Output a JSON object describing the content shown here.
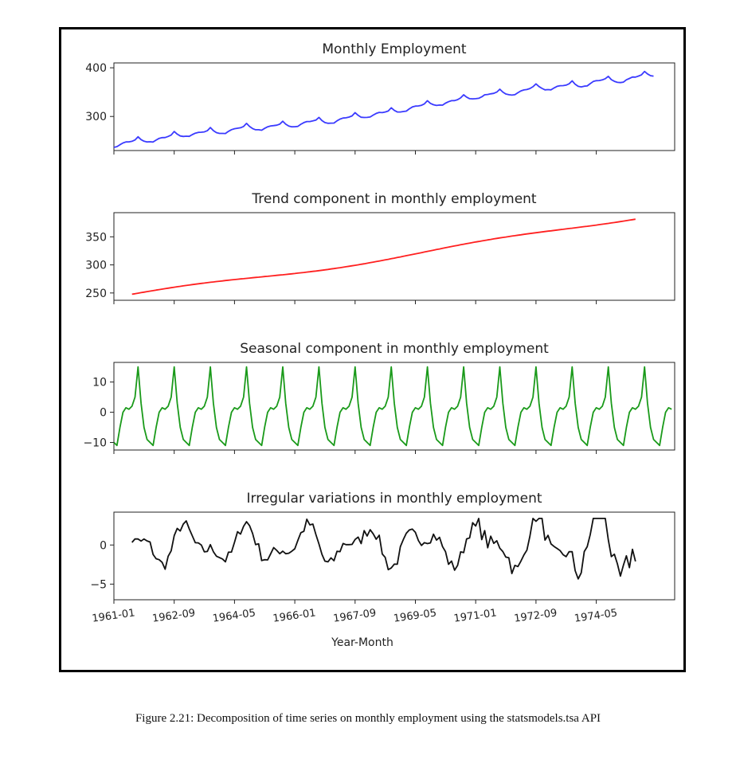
{
  "caption": "Figure 2.21: Decomposition of time series on monthly employment using the statsmodels.tsa API",
  "colors": {
    "observed": "#3b3bff",
    "trend": "#ff2020",
    "seasonal": "#1a9a1a",
    "residual": "#111111",
    "frame": "#000000"
  },
  "chart_data": [
    {
      "type": "line",
      "title": "Monthly Employment",
      "xlabel": "",
      "ylabel": "",
      "xlim": [
        0,
        186
      ],
      "ylim": [
        230,
        410
      ],
      "yticks": [
        300,
        400
      ],
      "series": [
        {
          "generator": "observed",
          "start_month": 0,
          "months": 180
        }
      ]
    },
    {
      "type": "line",
      "title": "Trend component in monthly employment",
      "xlabel": "",
      "ylabel": "",
      "xlim": [
        0,
        186
      ],
      "ylim": [
        237,
        393
      ],
      "yticks": [
        250,
        300,
        350
      ],
      "series": [
        {
          "generator": "trend",
          "start_month": 6,
          "months": 168
        }
      ]
    },
    {
      "type": "line",
      "title": "Seasonal component in monthly employment",
      "xlabel": "",
      "ylabel": "",
      "xlim": [
        0,
        186
      ],
      "ylim": [
        -12.5,
        16.5
      ],
      "yticks": [
        -10,
        0,
        10
      ],
      "series": [
        {
          "generator": "seasonal",
          "start_month": 0,
          "months": 186
        }
      ]
    },
    {
      "type": "line",
      "title": "Irregular variations in monthly employment",
      "xlabel": "Year-Month",
      "ylabel": "",
      "xlim": [
        0,
        186
      ],
      "ylim": [
        -7,
        4.2
      ],
      "yticks": [
        -5,
        0
      ],
      "xtick_labels": [
        "1961-01",
        "1962-09",
        "1964-05",
        "1966-01",
        "1967-09",
        "1969-05",
        "1971-01",
        "1972-09",
        "1974-05"
      ],
      "xtick_months": [
        0,
        20,
        40,
        60,
        80,
        100,
        120,
        140,
        160
      ],
      "series": [
        {
          "generator": "residual",
          "start_month": 6,
          "months": 168
        }
      ]
    }
  ]
}
